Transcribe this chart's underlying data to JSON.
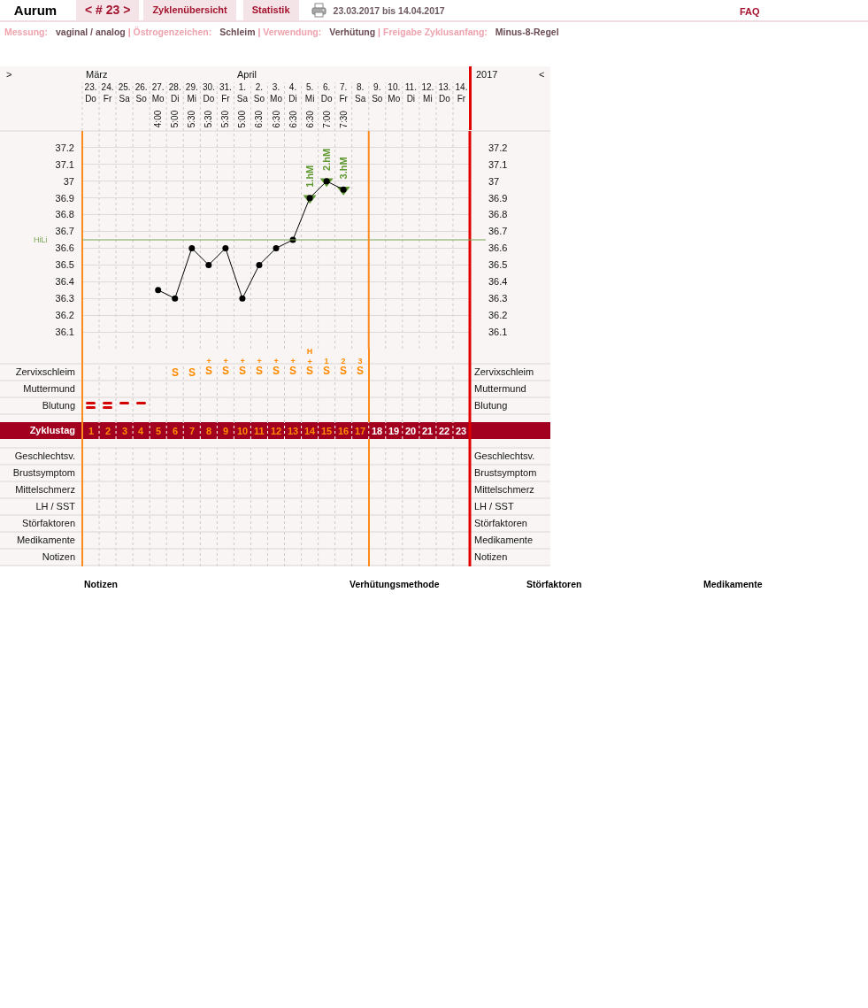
{
  "chart_data": [
    {
      "type": "other",
      "title": "Aurum",
      "subtitle": "Messung: vaginal / analog | Östrogenzeichen: Schleim | Verwendung: Verhütung | Freigabe Zyklusanfang: Minus-8-Regel",
      "annotations": [
        "< # 23 >",
        "Zyklenübersicht",
        "Statistik",
        "23.03.2017 bis 14.04.2017",
        "FAQ"
      ]
    },
    {
      "type": "line",
      "xlim": [
        "2017-03-22T12:00",
        "2017-04-14T12:00"
      ],
      "xticks": [
        {
          "value": "2017-03-23",
          "label": "23.\nDo"
        },
        {
          "value": "2017-03-24",
          "label": "24.\nFr"
        },
        {
          "value": "2017-03-25",
          "label": "25.\nSa"
        },
        {
          "value": "2017-03-26",
          "label": "26.\nSo"
        },
        {
          "value": "2017-03-27",
          "label": "27.\nMo"
        },
        {
          "value": "2017-03-28",
          "label": "28.\nDi"
        },
        {
          "value": "2017-03-29",
          "label": "29.\nMi"
        },
        {
          "value": "2017-03-30",
          "label": "30.\nDo"
        },
        {
          "value": "2017-03-31",
          "label": "31.\nFr"
        },
        {
          "value": "2017-04-01",
          "label": "1.\nSa"
        },
        {
          "value": "2017-04-02",
          "label": "2.\nSo"
        },
        {
          "value": "2017-04-03",
          "label": "3.\nMo"
        },
        {
          "value": "2017-04-04",
          "label": "4.\nDi"
        },
        {
          "value": "2017-04-05",
          "label": "5.\nMi"
        },
        {
          "value": "2017-04-06",
          "label": "6.\nDo"
        },
        {
          "value": "2017-04-07",
          "label": "7.\nFr"
        },
        {
          "value": "2017-04-08",
          "label": "8.\nSa"
        },
        {
          "value": "2017-04-09",
          "label": "9.\nSo"
        },
        {
          "value": "2017-04-10",
          "label": "10.\nMo"
        },
        {
          "value": "2017-04-11",
          "label": "11.\nDi"
        },
        {
          "value": "2017-04-12",
          "label": "12.\nMi"
        },
        {
          "value": "2017-04-13",
          "label": "13.\nDo"
        },
        {
          "value": "2017-04-14",
          "label": "14.\nFr"
        }
      ],
      "ylim": [
        36,
        37.3
      ],
      "yticks": [
        36.1,
        36.2,
        36.3,
        36.4,
        36.5,
        36.6,
        36.7,
        36.8,
        36.9,
        37,
        37.1,
        37.2
      ],
      "y2lim": [
        36,
        37.3
      ],
      "y2ticks": [
        36.1,
        36.2,
        36.3,
        36.4,
        36.5,
        36.6,
        36.7,
        36.8,
        36.9,
        37,
        37.1,
        37.2
      ],
      "grid": true,
      "marker": "circle",
      "series": [
        {
          "type": "scatter",
          "marker": "triangle",
          "color": "#5e9830",
          "x": [
            "2017-04-05",
            "2017-04-06",
            "2017-04-07"
          ],
          "values": [
            36.9,
            37,
            36.95
          ]
        },
        {
          "color": "#000000",
          "x": [
            "2017-03-27",
            "2017-03-28",
            "2017-03-29",
            "2017-03-30",
            "2017-03-31",
            "2017-04-01",
            "2017-04-02",
            "2017-04-03",
            "2017-04-04",
            "2017-04-05",
            "2017-04-06",
            "2017-04-07"
          ],
          "values": [
            36.35,
            36.3,
            36.6,
            36.5,
            36.6,
            36.3,
            36.5,
            36.6,
            36.65,
            36.9,
            37,
            36.95
          ]
        }
      ],
      "ref_lines": [
        {
          "axis": "y",
          "value": 36.65,
          "label": "HiLi",
          "color": "#78a656"
        },
        {
          "axis": "x",
          "value": "2017-04-08T12:00",
          "color": "#ff8a1c"
        }
      ],
      "annotations": [
        ">",
        "März",
        "April",
        "2017",
        "<",
        "4:00",
        "5:00",
        "5:30",
        "5:30",
        "5:30",
        "5:00",
        "6:30",
        "6:30",
        "6:30",
        "6:30",
        "7:00",
        "7:30",
        {
          "text": "1.hM",
          "x": "2017-04-05",
          "y": 36.9
        },
        {
          "text": "2.hM",
          "x": "2017-04-06",
          "y": 37
        },
        {
          "text": "3.hM",
          "x": "2017-04-07",
          "y": 36.95
        }
      ]
    },
    {
      "type": "heatmap",
      "categories": [
        null,
        null,
        null,
        null,
        null,
        null,
        null,
        null,
        null,
        null,
        null,
        null,
        null,
        null,
        null,
        null,
        null,
        null,
        null,
        null,
        null,
        null,
        null
      ],
      "tick_labels": "y",
      "grid": true,
      "y_categories": [
        "Zervixschleim",
        "Muttermund",
        "Blutung"
      ],
      "y2_categories": [
        "Zervixschleim",
        "Muttermund",
        "Blutung"
      ],
      "cells": [
        [
          null,
          null,
          null,
          null,
          null,
          null,
          null,
          null,
          null,
          null,
          null,
          null,
          null,
          null,
          null,
          null,
          null,
          null,
          null,
          null,
          null,
          null,
          null
        ],
        [
          null,
          null,
          null,
          null,
          null,
          null,
          null,
          null,
          null,
          null,
          null,
          null,
          null,
          null,
          null,
          null,
          null,
          null,
          null,
          null,
          null,
          null,
          null
        ],
        [
          null,
          null,
          null,
          null,
          null,
          null,
          null,
          null,
          null,
          null,
          null,
          null,
          null,
          null,
          null,
          null,
          null,
          null,
          null,
          null,
          null,
          null,
          null
        ]
      ],
      "cell_labels": [
        [
          null,
          null,
          null,
          null,
          null,
          "S",
          "S",
          "+\nS",
          "+\nS",
          "+\nS",
          "+\nS",
          "+\nS",
          "+\nS",
          "H\n+\nS",
          "1\nS",
          "2\nS",
          "3\nS",
          null,
          null,
          null,
          null,
          null,
          null
        ],
        [
          null,
          null,
          null,
          null,
          null,
          null,
          null,
          null,
          null,
          null,
          null,
          null,
          null,
          null,
          null,
          null,
          null,
          null,
          null,
          null,
          null,
          null,
          null
        ],
        [
          null,
          null,
          null,
          null,
          null,
          null,
          null,
          null,
          null,
          null,
          null,
          null,
          null,
          null,
          null,
          null,
          null,
          null,
          null,
          null,
          null,
          null,
          null
        ]
      ]
    },
    {
      "type": "heatmap",
      "categories": [
        null,
        null,
        null,
        null,
        null,
        null,
        null,
        null,
        null,
        null,
        null,
        null,
        null,
        null,
        null,
        null,
        null,
        null,
        null,
        null,
        null,
        null,
        null
      ],
      "tick_labels": "y",
      "grid": "x",
      "y_categories": [
        "Zyklustag"
      ],
      "cells": [
        [
          null,
          null,
          null,
          null,
          null,
          null,
          null,
          null,
          null,
          null,
          null,
          null,
          null,
          null,
          null,
          null,
          null,
          null,
          null,
          null,
          null,
          null,
          null
        ]
      ],
      "cell_labels": [
        [
          "1",
          "2",
          "3",
          "4",
          "5",
          "6",
          "7",
          "8",
          "9",
          "10",
          "11",
          "12",
          "13",
          "14",
          "15",
          "16",
          "17",
          "18",
          "19",
          "20",
          "21",
          "22",
          "23"
        ]
      ],
      "bands": [
        {
          "axis": "y",
          "from": "Zyklustag",
          "to": "Zyklustag",
          "color": "#a3001f"
        }
      ]
    },
    {
      "type": "heatmap",
      "categories": [
        null,
        null,
        null,
        null,
        null,
        null,
        null,
        null,
        null,
        null,
        null,
        null,
        null,
        null,
        null,
        null,
        null,
        null,
        null,
        null,
        null,
        null,
        null
      ],
      "tick_labels": "y",
      "grid": true,
      "y_categories": [
        "Geschlechtsv.",
        "Brustsymptom",
        "Mittelschmerz",
        "LH / SST",
        "Störfaktoren",
        "Medikamente",
        "Notizen"
      ],
      "y2_categories": [
        "Geschlechtsv.",
        "Brustsymptom",
        "Mittelschmerz",
        "LH / SST",
        "Störfaktoren",
        "Medikamente",
        "Notizen"
      ],
      "cells": [
        [
          null,
          null,
          null,
          null,
          null,
          null,
          null,
          null,
          null,
          null,
          null,
          null,
          null,
          null,
          null,
          null,
          null,
          null,
          null,
          null,
          null,
          null,
          null
        ],
        [
          null,
          null,
          null,
          null,
          null,
          null,
          null,
          null,
          null,
          null,
          null,
          null,
          null,
          null,
          null,
          null,
          null,
          null,
          null,
          null,
          null,
          null,
          null
        ],
        [
          null,
          null,
          null,
          null,
          null,
          null,
          null,
          null,
          null,
          null,
          null,
          null,
          null,
          null,
          null,
          null,
          null,
          null,
          null,
          null,
          null,
          null,
          null
        ],
        [
          null,
          null,
          null,
          null,
          null,
          null,
          null,
          null,
          null,
          null,
          null,
          null,
          null,
          null,
          null,
          null,
          null,
          null,
          null,
          null,
          null,
          null,
          null
        ],
        [
          null,
          null,
          null,
          null,
          null,
          null,
          null,
          null,
          null,
          null,
          null,
          null,
          null,
          null,
          null,
          null,
          null,
          null,
          null,
          null,
          null,
          null,
          null
        ],
        [
          null,
          null,
          null,
          null,
          null,
          null,
          null,
          null,
          null,
          null,
          null,
          null,
          null,
          null,
          null,
          null,
          null,
          null,
          null,
          null,
          null,
          null,
          null
        ],
        [
          null,
          null,
          null,
          null,
          null,
          null,
          null,
          null,
          null,
          null,
          null,
          null,
          null,
          null,
          null,
          null,
          null,
          null,
          null,
          null,
          null,
          null,
          null
        ]
      ]
    },
    {
      "type": "other",
      "annotations": [
        "Notizen",
        "Verhütungsmethode",
        "Störfaktoren",
        "Medikamente"
      ]
    }
  ]
}
